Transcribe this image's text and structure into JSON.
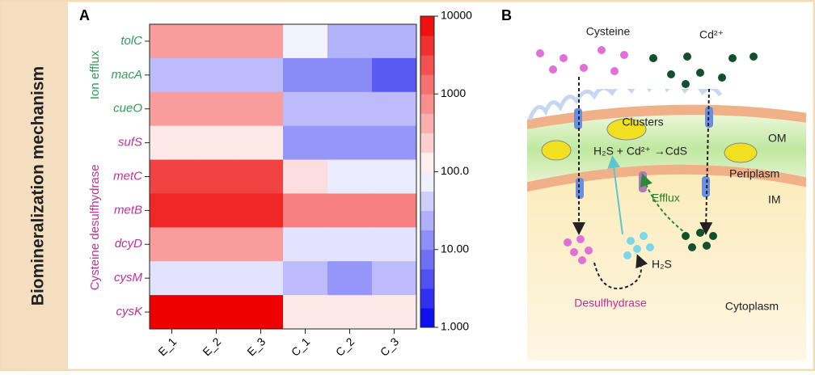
{
  "side_title": "Biomineralization mechanism",
  "chart_data": {
    "type": "heatmap",
    "panel": "A",
    "groups": [
      {
        "name": "Ion efflux",
        "color": "#2f9a5c",
        "categories": [
          "tolC",
          "macA",
          "cueO"
        ]
      },
      {
        "name": "Cysteine desulfhydrase",
        "color": "#c0309a",
        "categories": [
          "sufS",
          "metC",
          "metB",
          "dcyD",
          "cysM",
          "cysK"
        ]
      }
    ],
    "x": [
      "E_1",
      "E_2",
      "E_3",
      "C_1",
      "C_2",
      "C_3"
    ],
    "values": [
      [
        600,
        600,
        600,
        80,
        25,
        25
      ],
      [
        30,
        30,
        30,
        12,
        12,
        5
      ],
      [
        600,
        600,
        600,
        30,
        30,
        30
      ],
      [
        150,
        150,
        150,
        15,
        15,
        15
      ],
      [
        3000,
        3000,
        3000,
        180,
        70,
        70
      ],
      [
        5000,
        5000,
        5000,
        1000,
        1000,
        1000
      ],
      [
        600,
        600,
        600,
        60,
        60,
        60
      ],
      [
        60,
        60,
        60,
        30,
        15,
        30
      ],
      [
        10000,
        10000,
        10000,
        150,
        150,
        150
      ]
    ],
    "zlim": [
      1,
      10000
    ],
    "zlog": true,
    "zticks": [
      {
        "value": 10000,
        "label": "10000"
      },
      {
        "value": 1000,
        "label": "1000"
      },
      {
        "value": 100,
        "label": "100.0"
      },
      {
        "value": 10,
        "label": "10.00"
      },
      {
        "value": 1,
        "label": "1.000"
      }
    ],
    "colors": {
      "low": "#0000ee",
      "mid": "#ffffff",
      "high": "#ee0000"
    }
  },
  "diagram": {
    "panel": "B",
    "labels": {
      "cysteine": "Cysteine",
      "cd": "Cd²⁺",
      "clusters": "Clusters",
      "reaction": "H₂S + Cd²⁺ →CdS",
      "om": "OM",
      "periplasm": "Periplasm",
      "im": "IM",
      "efflux": "Efflux",
      "h2s": "H₂S",
      "desulfhydrase": "Desulfhydrase",
      "cytoplasm": "Cytoplasm"
    }
  }
}
